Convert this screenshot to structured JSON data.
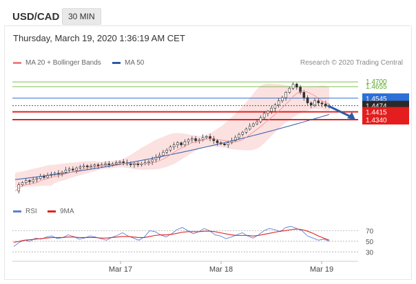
{
  "header": {
    "symbol": "USD/CAD",
    "timeframe": "30 MIN"
  },
  "subheader": {
    "datetime": "Thursday, March 19, 2020 1:36:19 AM CET"
  },
  "legend": {
    "ma20_label": "MA 20 + Bollinger Bands",
    "ma50_label": "MA 50",
    "credit": "Research © 2020 Trading Central",
    "rsi_label": "RSI",
    "rsi_ma_label": "9MA"
  },
  "colors": {
    "bollinger": "#f08080",
    "ma50": "#2d5aa8",
    "candle": "#333333",
    "support": "#e02020",
    "resistance_green": "#7cc04a",
    "resistance_blue": "#2d6fd6",
    "current": "#222222",
    "arrow": "#2a5da8",
    "rsi": "#5b7fd6",
    "rsi_ma": "#e02020"
  },
  "chart_data": [
    {
      "type": "candlestick",
      "title": "USD/CAD 30 MIN",
      "x_ticks": [
        "Mar 17",
        "Mar 18",
        "Mar 19"
      ],
      "price_levels": [
        {
          "value": 1.47,
          "label": "1.4700",
          "role": "resistance",
          "color": "green"
        },
        {
          "value": 1.4655,
          "label": "1.4655",
          "role": "resistance",
          "color": "green"
        },
        {
          "value": 1.4545,
          "label": "1.4545",
          "role": "resistance",
          "color": "blue"
        },
        {
          "value": 1.4474,
          "label": "1.4474",
          "role": "current",
          "color": "dark"
        },
        {
          "value": 1.4415,
          "label": "1.4415",
          "role": "support",
          "color": "red"
        },
        {
          "value": 1.434,
          "label": "1.4340",
          "role": "support",
          "color": "red"
        }
      ],
      "forecast": "down toward 1.4340",
      "price_path": [
        1.366,
        1.372,
        1.374,
        1.376,
        1.375,
        1.377,
        1.378,
        1.38,
        1.379,
        1.381,
        1.382,
        1.383,
        1.382,
        1.384,
        1.386,
        1.387,
        1.386,
        1.388,
        1.389,
        1.39,
        1.389,
        1.39,
        1.391,
        1.39,
        1.391,
        1.392,
        1.391,
        1.392,
        1.393,
        1.394,
        1.393,
        1.392,
        1.391,
        1.392,
        1.391,
        1.392,
        1.393,
        1.394,
        1.396,
        1.398,
        1.4,
        1.403,
        1.405,
        1.408,
        1.41,
        1.412,
        1.41,
        1.413,
        1.415,
        1.416,
        1.414,
        1.415,
        1.417,
        1.418,
        1.416,
        1.414,
        1.412,
        1.411,
        1.41,
        1.412,
        1.414,
        1.417,
        1.42,
        1.422,
        1.425,
        1.428,
        1.43,
        1.432,
        1.436,
        1.44,
        1.442,
        1.445,
        1.448,
        1.452,
        1.455,
        1.46,
        1.464,
        1.468,
        1.465,
        1.46,
        1.455,
        1.45,
        1.448,
        1.452,
        1.45,
        1.449,
        1.447,
        1.447
      ],
      "ma50": {
        "start": 1.377,
        "end": 1.439
      },
      "bollinger": {
        "visible": true
      }
    },
    {
      "type": "line",
      "title": "RSI",
      "series": [
        {
          "name": "RSI",
          "values": [
            40,
            48,
            52,
            50,
            56,
            54,
            58,
            60,
            55,
            57,
            62,
            59,
            54,
            56,
            60,
            58,
            55,
            52,
            57,
            61,
            66,
            60,
            56,
            52,
            58,
            70,
            68,
            62,
            58,
            64,
            72,
            76,
            70,
            64,
            68,
            74,
            70,
            62,
            60,
            55,
            58,
            62,
            66,
            60,
            56,
            62,
            70,
            74,
            72,
            68,
            76,
            78,
            74,
            70,
            60,
            56,
            52,
            54,
            50
          ]
        },
        {
          "name": "9MA",
          "values": [
            48,
            50,
            52,
            53,
            54,
            55,
            56,
            57,
            57,
            57,
            58,
            58,
            57,
            57,
            57,
            57,
            56,
            56,
            57,
            58,
            59,
            59,
            58,
            57,
            57,
            59,
            61,
            62,
            62,
            63,
            65,
            67,
            68,
            68,
            68,
            69,
            69,
            68,
            66,
            64,
            62,
            61,
            61,
            61,
            60,
            61,
            63,
            65,
            67,
            69,
            70,
            72,
            73,
            72,
            69,
            65,
            60,
            56,
            52
          ]
        }
      ],
      "levels": [
        70,
        50,
        30
      ],
      "ylim": [
        20,
        90
      ]
    }
  ]
}
